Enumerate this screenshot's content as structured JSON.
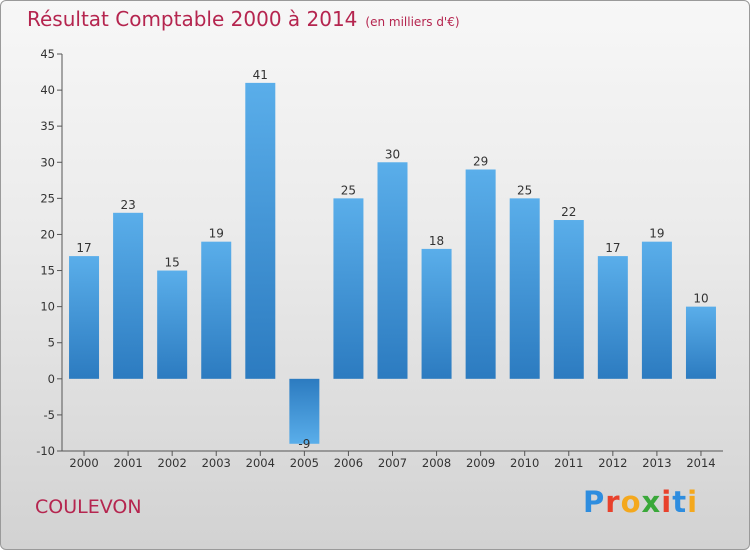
{
  "page": {
    "title": "Résultat Comptable 2000 à 2014",
    "subtitle": "(en milliers d'€)",
    "town": "COULEVON",
    "logo": {
      "letters": [
        "P",
        "r",
        "o",
        "x",
        "i",
        "t",
        "i"
      ],
      "colors": [
        "#2e8ddf",
        "#e8412c",
        "#f4a81d",
        "#3aa83a",
        "#e8412c",
        "#2e8ddf",
        "#f4a81d"
      ]
    }
  },
  "chart_data": {
    "type": "bar",
    "title": "Résultat Comptable 2000 à 2014",
    "subtitle": "(en milliers d'€)",
    "xlabel": "",
    "ylabel": "",
    "categories": [
      "2000",
      "2001",
      "2002",
      "2003",
      "2004",
      "2005",
      "2006",
      "2007",
      "2008",
      "2009",
      "2010",
      "2011",
      "2012",
      "2013",
      "2014"
    ],
    "values": [
      17,
      23,
      15,
      19,
      41,
      -9,
      25,
      30,
      18,
      29,
      25,
      22,
      17,
      19,
      10
    ],
    "ylim": [
      -10,
      45
    ],
    "yticks": [
      -10,
      -5,
      0,
      5,
      10,
      15,
      20,
      25,
      30,
      35,
      40,
      45
    ],
    "grid": false,
    "bar_color": "#4ea3e4"
  }
}
